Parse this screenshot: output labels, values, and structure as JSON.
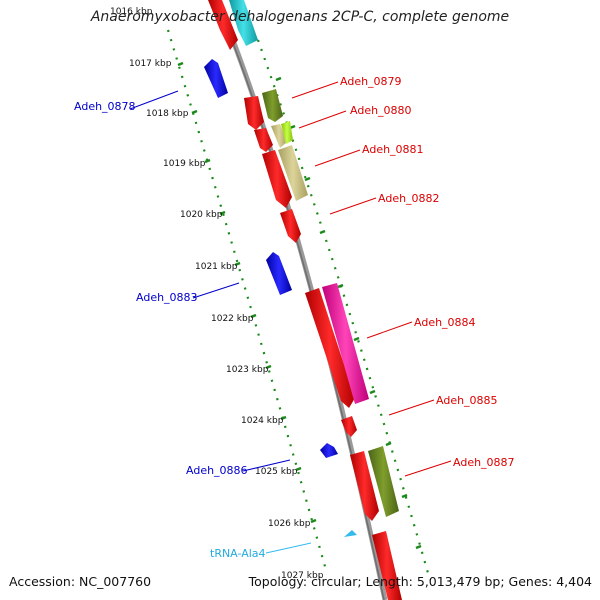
{
  "title": "Anaeromyxobacter dehalogenans 2CP-C, complete genome",
  "accession": "Accession: NC_007760",
  "summary": "Topology: circular; Length: 5,013,479 bp; Genes: 4,404",
  "colors": {
    "backbone": "#8c8c8c",
    "tick": "#1a8a1a",
    "cds_red": "#ee1111",
    "blue": "#1111dd",
    "cyan": "#22c4cc",
    "olive": "#6b8a22",
    "khaki": "#c8c080",
    "lime": "#aaee22",
    "pink": "#ee1199",
    "trna": "#33bbee"
  },
  "kbp_labels": [
    "1016 kbp",
    "1017 kbp",
    "1018 kbp",
    "1019 kbp",
    "1020 kbp",
    "1021 kbp",
    "1022 kbp",
    "1023 kbp",
    "1024 kbp",
    "1025 kbp",
    "1026 kbp",
    "1027 kbp"
  ],
  "gene_labels": [
    {
      "text": "Adeh_0879",
      "color": "#dd0000"
    },
    {
      "text": "Adeh_0880",
      "color": "#dd0000"
    },
    {
      "text": "Adeh_0881",
      "color": "#dd0000"
    },
    {
      "text": "Adeh_0882",
      "color": "#dd0000"
    },
    {
      "text": "Adeh_0884",
      "color": "#dd0000"
    },
    {
      "text": "Adeh_0885",
      "color": "#dd0000"
    },
    {
      "text": "Adeh_0887",
      "color": "#dd0000"
    },
    {
      "text": "Adeh_0878",
      "color": "#0000cc"
    },
    {
      "text": "Adeh_0883",
      "color": "#0000cc"
    },
    {
      "text": "Adeh_0886",
      "color": "#0000cc"
    },
    {
      "text": "tRNA-Ala4",
      "color": "#22aadd"
    }
  ]
}
